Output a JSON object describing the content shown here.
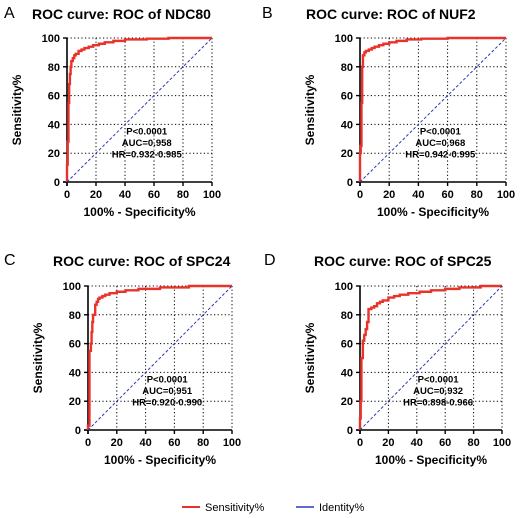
{
  "legend": [
    {
      "label": "Sensitivity%",
      "color": "#e8332a"
    },
    {
      "label": "Identity%",
      "color": "#2c3cb4"
    }
  ],
  "chart_data": [
    {
      "type": "line",
      "panel": "A",
      "title": "ROC curve: ROC of NDC80",
      "xlabel": "100% - Specificity%",
      "ylabel": "Sensitivity%",
      "xlim": [
        0,
        100
      ],
      "ylim": [
        0,
        100
      ],
      "xticks": [
        "0",
        "20",
        "40",
        "60",
        "80",
        "100"
      ],
      "yticks": [
        "0",
        "20",
        "40",
        "60",
        "80",
        "100"
      ],
      "grid": "dotted",
      "annotation": {
        "p": "P<0.0001",
        "auc": "AUC=0.958",
        "hr": "HR=0.932-0.985"
      },
      "series": [
        {
          "name": "Sensitivity%",
          "color": "#e8332a",
          "x": [
            0,
            0,
            0.5,
            0.5,
            1,
            1,
            1.5,
            1.5,
            2,
            2,
            2.5,
            2.5,
            3,
            3,
            4,
            4,
            5,
            5,
            6,
            6,
            8,
            8,
            10,
            10,
            12,
            12,
            15,
            15,
            18,
            18,
            22,
            22,
            26,
            26,
            32,
            32,
            40,
            40,
            55,
            55,
            70,
            70,
            100
          ],
          "y": [
            0,
            12,
            12,
            28,
            28,
            55,
            55,
            68,
            68,
            75,
            75,
            80,
            80,
            84,
            84,
            86,
            86,
            88,
            88,
            89,
            89,
            91,
            91,
            92,
            92,
            93,
            93,
            94,
            94,
            95,
            95,
            96,
            96,
            97,
            97,
            98,
            98,
            99,
            99,
            99.5,
            99.5,
            100,
            100
          ]
        },
        {
          "name": "Identity%",
          "color": "#2c3cb4",
          "x": [
            0,
            100
          ],
          "y": [
            0,
            100
          ]
        }
      ]
    },
    {
      "type": "line",
      "panel": "B",
      "title": "ROC curve: ROC of NUF2",
      "xlabel": "100% - Specificity%",
      "ylabel": "Sensitivity%",
      "xlim": [
        0,
        100
      ],
      "ylim": [
        0,
        100
      ],
      "xticks": [
        "0",
        "20",
        "40",
        "60",
        "80",
        "100"
      ],
      "yticks": [
        "0",
        "20",
        "40",
        "60",
        "80",
        "100"
      ],
      "grid": "dotted",
      "annotation": {
        "p": "P<0.0001",
        "auc": "AUC=0.968",
        "hr": "HR=0.942-0.995"
      },
      "series": [
        {
          "name": "Sensitivity%",
          "color": "#e8332a",
          "x": [
            0,
            0,
            0.5,
            0.5,
            1,
            1,
            1.5,
            1.5,
            2,
            2,
            3,
            3,
            4,
            4,
            6,
            6,
            8,
            8,
            10,
            10,
            13,
            13,
            16,
            16,
            20,
            20,
            25,
            25,
            32,
            32,
            42,
            42,
            60,
            60,
            100
          ],
          "y": [
            0,
            20,
            20,
            25,
            25,
            55,
            55,
            80,
            80,
            88,
            88,
            90,
            90,
            91,
            91,
            92,
            92,
            93,
            93,
            94,
            94,
            95,
            95,
            96,
            96,
            97,
            97,
            98,
            98,
            99,
            99,
            99.5,
            99.5,
            100,
            100
          ]
        },
        {
          "name": "Identity%",
          "color": "#2c3cb4",
          "x": [
            0,
            100
          ],
          "y": [
            0,
            100
          ]
        }
      ]
    },
    {
      "type": "line",
      "panel": "C",
      "title": "ROC curve: ROC of SPC24",
      "xlabel": "100% - Specificity%",
      "ylabel": "Sensitivity%",
      "xlim": [
        0,
        100
      ],
      "ylim": [
        0,
        100
      ],
      "xticks": [
        "0",
        "20",
        "40",
        "60",
        "80",
        "100"
      ],
      "yticks": [
        "0",
        "20",
        "40",
        "60",
        "80",
        "100"
      ],
      "grid": "dotted",
      "annotation": {
        "p": "P<0.0001",
        "auc": "AUC=0.951",
        "hr": "HR=0.920-0.990"
      },
      "series": [
        {
          "name": "Sensitivity%",
          "color": "#e8332a",
          "x": [
            0,
            0,
            1,
            1,
            2,
            2,
            2.5,
            2.5,
            3,
            3,
            3.5,
            3.5,
            5,
            5,
            6,
            6,
            7,
            7,
            8,
            8,
            10,
            10,
            12,
            12,
            15,
            15,
            20,
            20,
            26,
            26,
            35,
            35,
            50,
            50,
            70,
            70,
            100
          ],
          "y": [
            0,
            3,
            3,
            55,
            55,
            60,
            60,
            68,
            68,
            75,
            75,
            80,
            80,
            87,
            87,
            89,
            89,
            91,
            91,
            92,
            92,
            93,
            93,
            94,
            94,
            95,
            95,
            96,
            96,
            97,
            97,
            98,
            98,
            99,
            99,
            100,
            100
          ]
        },
        {
          "name": "Identity%",
          "color": "#2c3cb4",
          "x": [
            0,
            100
          ],
          "y": [
            0,
            100
          ]
        }
      ]
    },
    {
      "type": "line",
      "panel": "D",
      "title": "ROC curve: ROC of SPC25",
      "xlabel": "100% - Specificity%",
      "ylabel": "Sensitivity%",
      "xlim": [
        0,
        100
      ],
      "ylim": [
        0,
        100
      ],
      "xticks": [
        "0",
        "20",
        "40",
        "60",
        "80",
        "100"
      ],
      "yticks": [
        "0",
        "20",
        "40",
        "60",
        "80",
        "100"
      ],
      "grid": "dotted",
      "annotation": {
        "p": "P<0.0001",
        "auc": "AUC=0.932",
        "hr": "HR=0.898-0.966"
      },
      "series": [
        {
          "name": "Sensitivity%",
          "color": "#e8332a",
          "x": [
            0,
            0,
            0.5,
            0.5,
            1,
            1,
            2,
            2,
            3,
            3,
            4,
            4,
            5,
            5,
            6,
            6,
            8,
            8,
            10,
            10,
            12,
            12,
            14,
            14,
            16,
            16,
            20,
            20,
            24,
            24,
            28,
            28,
            34,
            34,
            42,
            42,
            50,
            50,
            60,
            60,
            70,
            70,
            85,
            85,
            100
          ],
          "y": [
            0,
            8,
            8,
            20,
            20,
            50,
            50,
            62,
            62,
            66,
            66,
            70,
            70,
            75,
            75,
            84,
            84,
            85,
            85,
            86,
            86,
            88,
            88,
            89,
            89,
            90,
            90,
            92,
            92,
            93,
            93,
            94,
            94,
            95,
            95,
            96,
            96,
            97,
            97,
            98,
            98,
            99,
            99,
            100,
            100
          ]
        },
        {
          "name": "Identity%",
          "color": "#2c3cb4",
          "x": [
            0,
            100
          ],
          "y": [
            0,
            100
          ]
        }
      ]
    }
  ]
}
